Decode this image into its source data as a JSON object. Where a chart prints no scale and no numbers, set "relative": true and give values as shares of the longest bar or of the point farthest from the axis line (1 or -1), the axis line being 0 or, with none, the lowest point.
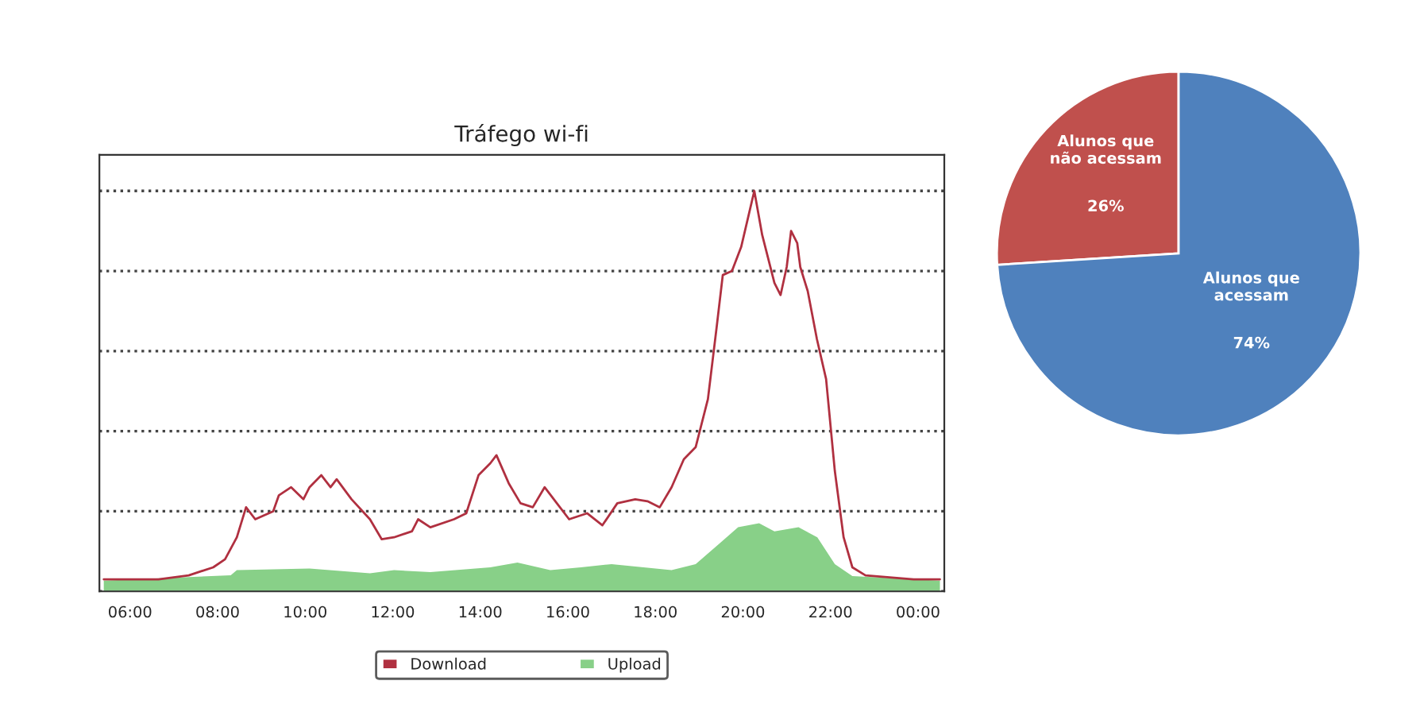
{
  "chart_data": [
    {
      "type": "line",
      "title": "Tráfego wi-fi",
      "relative": true,
      "grid": "y",
      "legend": "bottom",
      "xlim": [
        5.3,
        24.6
      ],
      "xticks": [
        {
          "value": 6,
          "label": "06:00"
        },
        {
          "value": 8,
          "label": "08:00"
        },
        {
          "value": 10,
          "label": "10:00"
        },
        {
          "value": 12,
          "label": "12:00"
        },
        {
          "value": 14,
          "label": "14:00"
        },
        {
          "value": 16,
          "label": "16:00"
        },
        {
          "value": 18,
          "label": "18:00"
        },
        {
          "value": 20,
          "label": "20:00"
        },
        {
          "value": 22,
          "label": "22:00"
        },
        {
          "value": 24,
          "label": "00:00"
        }
      ],
      "series": [
        {
          "name": "Download",
          "type": "line",
          "color": "#b03040",
          "x": [
            5.4,
            6.65,
            7.34,
            7.9,
            8.17,
            8.44,
            8.65,
            8.86,
            9.27,
            9.4,
            9.68,
            9.96,
            10.1,
            10.37,
            10.58,
            10.72,
            11.06,
            11.48,
            11.75,
            12.03,
            12.44,
            12.58,
            12.86,
            13.4,
            13.68,
            13.96,
            14.23,
            14.37,
            14.65,
            14.92,
            15.2,
            15.47,
            15.75,
            16.03,
            16.44,
            16.79,
            17.13,
            17.54,
            17.82,
            18.1,
            18.37,
            18.65,
            18.92,
            19.2,
            19.4,
            19.54,
            19.75,
            19.96,
            20.26,
            20.44,
            20.72,
            20.86,
            21.0,
            21.1,
            21.24,
            21.31,
            21.48,
            21.69,
            21.9,
            22.1,
            22.3,
            22.5,
            22.8,
            23.9,
            24.5
          ],
          "values": [
            0.03,
            0.03,
            0.04,
            0.06,
            0.08,
            0.135,
            0.21,
            0.18,
            0.2,
            0.24,
            0.26,
            0.23,
            0.26,
            0.29,
            0.26,
            0.28,
            0.23,
            0.18,
            0.13,
            0.135,
            0.15,
            0.18,
            0.16,
            0.18,
            0.195,
            0.29,
            0.32,
            0.34,
            0.27,
            0.22,
            0.21,
            0.26,
            0.22,
            0.18,
            0.195,
            0.165,
            0.22,
            0.23,
            0.225,
            0.21,
            0.26,
            0.33,
            0.36,
            0.48,
            0.66,
            0.79,
            0.8,
            0.86,
            1.0,
            0.89,
            0.77,
            0.74,
            0.81,
            0.9,
            0.87,
            0.81,
            0.75,
            0.63,
            0.53,
            0.3,
            0.135,
            0.06,
            0.04,
            0.03,
            0.03
          ]
        },
        {
          "name": "Upload",
          "type": "area",
          "color": "#88d088",
          "x": [
            5.4,
            8.3,
            8.44,
            10.1,
            11.48,
            12.03,
            12.86,
            14.23,
            14.85,
            15.6,
            16.3,
            17.0,
            18.37,
            18.92,
            19.47,
            19.89,
            20.37,
            20.72,
            21.27,
            21.7,
            22.1,
            22.5,
            24.5
          ],
          "values": [
            0.027,
            0.04,
            0.053,
            0.057,
            0.045,
            0.053,
            0.048,
            0.06,
            0.072,
            0.053,
            0.06,
            0.068,
            0.053,
            0.068,
            0.12,
            0.16,
            0.17,
            0.15,
            0.16,
            0.135,
            0.068,
            0.038,
            0.027
          ]
        }
      ]
    },
    {
      "type": "pie",
      "categories": [
        "Alunos que\nnão acessam",
        "Alunos que\nacessam"
      ],
      "values": [
        26,
        74
      ],
      "colors": [
        "#c0504d",
        "#4f81bd"
      ],
      "value_labels": [
        "26%",
        "74%"
      ]
    }
  ]
}
